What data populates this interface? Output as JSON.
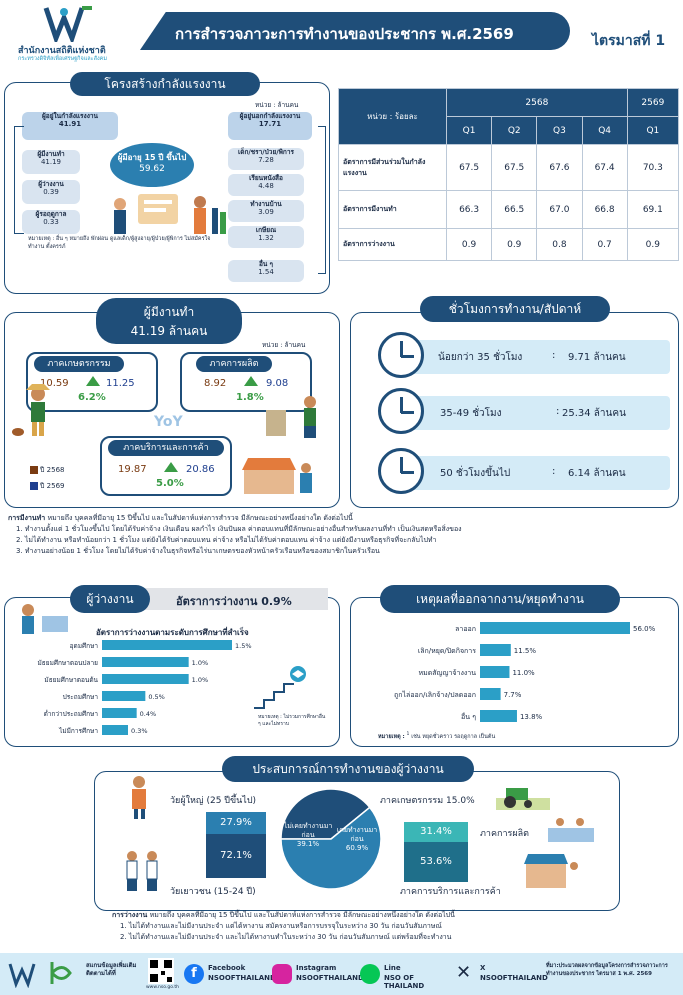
{
  "header": {
    "org_name": "สำนักงานสถิติแห่งชาติ",
    "org_sub": "กระทรวงดิจิทัลเพื่อเศรษฐกิจและสังคม",
    "title": "การสำรวจภาวะการทำงานของประชากร พ.ศ.2569",
    "quarter": "ไตรมาสที่ 1"
  },
  "structure": {
    "title": "โครงสร้างกำลังแรงงาน",
    "unit": "หน่วย : ล้านคน",
    "labor_force_label": "ผู้อยู่ในกำลังแรงงาน",
    "labor_force_value": "41.91",
    "employed_label": "ผู้มีงานทำ",
    "employed_value": "41.19",
    "unemployed_label": "ผู้ว่างงาน",
    "unemployed_value": "0.39",
    "seasonal_label": "ผู้รอฤดูกาล",
    "seasonal_value": "0.33",
    "age15_label": "ผู้มีอายุ 15 ปี ขึ้นไป",
    "age15_value": "59.62",
    "outside_label": "ผู้อยู่นอกกำลังแรงงาน",
    "outside_value": "17.71",
    "outside_items": [
      {
        "label": "เด็ก/ชรา/ป่วย/พิการ",
        "value": "7.28"
      },
      {
        "label": "เรียนหนังสือ",
        "value": "4.48"
      },
      {
        "label": "ทำงานบ้าน",
        "value": "3.09"
      },
      {
        "label": "เกษียณ",
        "value": "1.32"
      },
      {
        "label": "อื่น ๆ",
        "value": "1.54"
      }
    ],
    "note": "หมายเหตุ : อื่น ๆ หมายถึง พักผ่อน ดูแลเด็ก/ผู้สูงอายุ/ผู้ป่วย/ผู้พิการ ไม่สมัครใจทำงาน ตั้งครรภ์"
  },
  "rates_table": {
    "unit_label": "หน่วย : ร้อยละ",
    "year1": "2568",
    "year2": "2569",
    "quarters": [
      "Q1",
      "Q2",
      "Q3",
      "Q4",
      "Q1"
    ],
    "rows": [
      {
        "label": "อัตราการมีส่วนร่วมในกำลังแรงงาน",
        "values": [
          "67.5",
          "67.5",
          "67.6",
          "67.4",
          "70.3"
        ]
      },
      {
        "label": "อัตราการมีงานทำ",
        "values": [
          "66.3",
          "66.5",
          "67.0",
          "66.8",
          "69.1"
        ]
      },
      {
        "label": "อัตราการว่างงาน",
        "values": [
          "0.9",
          "0.9",
          "0.8",
          "0.7",
          "0.9"
        ]
      }
    ]
  },
  "employed": {
    "title": "ผู้มีงานทำ",
    "value": "41.19 ล้านคน",
    "unit": "หน่วย : ล้านคน",
    "yoy": "YoY",
    "sectors": [
      {
        "name": "ภาคเกษตรกรรม",
        "v2568": "10.59",
        "v2569": "11.25",
        "change": "6.2%"
      },
      {
        "name": "ภาคการผลิต",
        "v2568": "8.92",
        "v2569": "9.08",
        "change": "1.8%"
      },
      {
        "name": "ภาคบริการและการค้า",
        "v2568": "19.87",
        "v2569": "20.86",
        "change": "5.0%"
      }
    ],
    "legend_2568": "ปี 2568",
    "legend_2569": "ปี 2569",
    "color_2568": "#7a3b12",
    "color_2569": "#1f3f8f"
  },
  "hours": {
    "title": "ชั่วโมงการทำงาน/สัปดาห์",
    "rows": [
      {
        "label": "น้อยกว่า 35 ชั่วโมง",
        "value": "9.71 ล้านคน"
      },
      {
        "label": "35-49 ชั่วโมง",
        "value": "25.34 ล้านคน"
      },
      {
        "label": "50 ชั่วโมงขึ้นไป",
        "value": "6.14 ล้านคน"
      }
    ]
  },
  "definition": {
    "title": "การมีงานทำ",
    "text": "หมายถึง บุคคลที่มีอายุ 15 ปีขึ้นไป และในสัปดาห์แห่งการสำรวจ มีลักษณะอย่างหนึ่งอย่างใด ดังต่อไปนี้",
    "items": [
      "1. ทำงานตั้งแต่ 1 ชั่วโมงขึ้นไป โดยได้รับค่าจ้าง เงินเดือน ผลกำไร เงินปันผล ค่าตอบแทนที่มีลักษณะอย่างอื่นสำหรับผลงานที่ทำ เป็นเงินสดหรือสิ่งของ",
      "2. ไม่ได้ทำงาน หรือทำน้อยกว่า 1 ชั่วโมง แต่ยังได้รับค่าตอบแทน ค่าจ้าง หรือไม่ได้รับค่าตอบแทน ค่าจ้าง แต่ยังมีงานหรือธุรกิจที่จะกลับไปทำ",
      "3. ทำงานอย่างน้อย 1 ชั่วโมง โดยไม่ได้รับค่าจ้างในธุรกิจหรือไร่นาเกษตรของหัวหน้าครัวเรือนหรือของสมาชิกในครัวเรือน"
    ]
  },
  "unemployed": {
    "title": "ผู้ว่างงาน",
    "rate_label": "อัตราการว่างงาน 0.9%",
    "chart_title": "อัตราการว่างงานตามระดับการศึกษาที่สำเร็จ",
    "note": "หมายเหตุ : ไม่รวมการศึกษาอื่น ๆ และไม่ทราบ"
  },
  "reasons": {
    "title": "เหตุผลที่ออกจากงาน/หยุดทำงาน",
    "note_label": "หมายเหตุ :",
    "note_sup": "1",
    "note_text": "เช่น หยุดชั่วคราว รอฤดูกาล เป็นต้น"
  },
  "experience": {
    "title": "ประสบการณ์การทำงานของผู้ว่างงาน",
    "adult_label": "วัยผู้ใหญ่ (25 ปีขึ้นไป)",
    "youth_label": "วัยเยาวชน (15-24 ปี)",
    "adult_pcts": [
      "27.9%",
      "72.1%"
    ],
    "right_pcts": [
      "31.4%",
      "53.6%"
    ],
    "no_exp_label": "ไม่เคยทำงานมาก่อน",
    "no_exp_value": "39.1%",
    "exp_label": "เคยทำงานมาก่อน",
    "exp_value": "60.9%",
    "agri_label": "ภาคเกษตรกรรม 15.0%",
    "manu_label": "ภาคการผลิต",
    "service_label": "ภาคการบริการและการค้า"
  },
  "unemp_def": {
    "title": "การว่างงาน",
    "text": "หมายถึง บุคคลที่มีอายุ 15 ปีขึ้นไป และในสัปดาห์แห่งการสำรวจ มีลักษณะอย่างหนึ่งอย่างใด ดังต่อไปนี้",
    "items": [
      "1. ไม่ได้ทำงานและไม่มีงานประจำ แต่ได้หางาน สมัครงานหรือการบรรจุในระหว่าง 30 วัน ก่อนวันสัมภาษณ์",
      "2. ไม่ได้ทำงานและไม่มีงานประจำ และไม่ได้หางานทำในระหว่าง 30 วัน ก่อนวันสัมภาษณ์ แต่พร้อมที่จะทำงาน"
    ]
  },
  "footer": {
    "app_label": "สแกนข้อมูลเพิ่มเติม ติดตามได้ที่",
    "qr_url": "www.nso.go.th",
    "socials": [
      {
        "name": "Facebook",
        "handle": "NSOOFTHAILAND"
      },
      {
        "name": "Instagram",
        "handle": "NSOOFTHAILAND"
      },
      {
        "name": "Line",
        "handle": "NSO OF THAILAND"
      },
      {
        "name": "X",
        "handle": "NSOOFTHAILAND"
      }
    ],
    "release": "ที่มา:ประมวลผลจากข้อมูลโครงการสำรวจภาวะการทำงานของประชากร ไตรมาส 1 พ.ศ. 2569"
  },
  "chart_data": [
    {
      "type": "bar",
      "title": "อัตราการว่างงานตามระดับการศึกษาที่สำเร็จ",
      "categories": [
        "อุดมศึกษา",
        "มัธยมศึกษาตอนปลาย",
        "มัธยมศึกษาตอนต้น",
        "ประถมศึกษา",
        "ต่ำกว่าประถมศึกษา",
        "ไม่มีการศึกษา"
      ],
      "values": [
        1.5,
        1.0,
        1.0,
        0.5,
        0.4,
        0.3
      ],
      "labels": [
        "1.5%",
        "1.0%",
        "1.0%",
        "0.5%",
        "0.4%",
        "0.3%"
      ],
      "color": "#2b9fc7"
    },
    {
      "type": "bar",
      "title": "เหตุผลที่ออกจากงาน/หยุดทำงาน",
      "categories": [
        "ลาออก",
        "เลิก/หยุด/ปิดกิจการ",
        "หมดสัญญาจ้างงาน",
        "ถูกไล่ออก/เลิกจ้าง/ปลดออก",
        "อื่น ๆ"
      ],
      "values": [
        56.0,
        11.5,
        11.0,
        7.7,
        13.8
      ],
      "labels": [
        "56.0%",
        "11.5%",
        "11.0%",
        "7.7%",
        "13.8%"
      ],
      "color": "#2b9fc7"
    },
    {
      "type": "pie",
      "labels": [
        "ไม่เคยทำงานมาก่อน",
        "เคยทำงานมาก่อน"
      ],
      "values": [
        39.1,
        60.9
      ],
      "colors": [
        "#1f4e79",
        "#2b7fb0"
      ]
    }
  ]
}
